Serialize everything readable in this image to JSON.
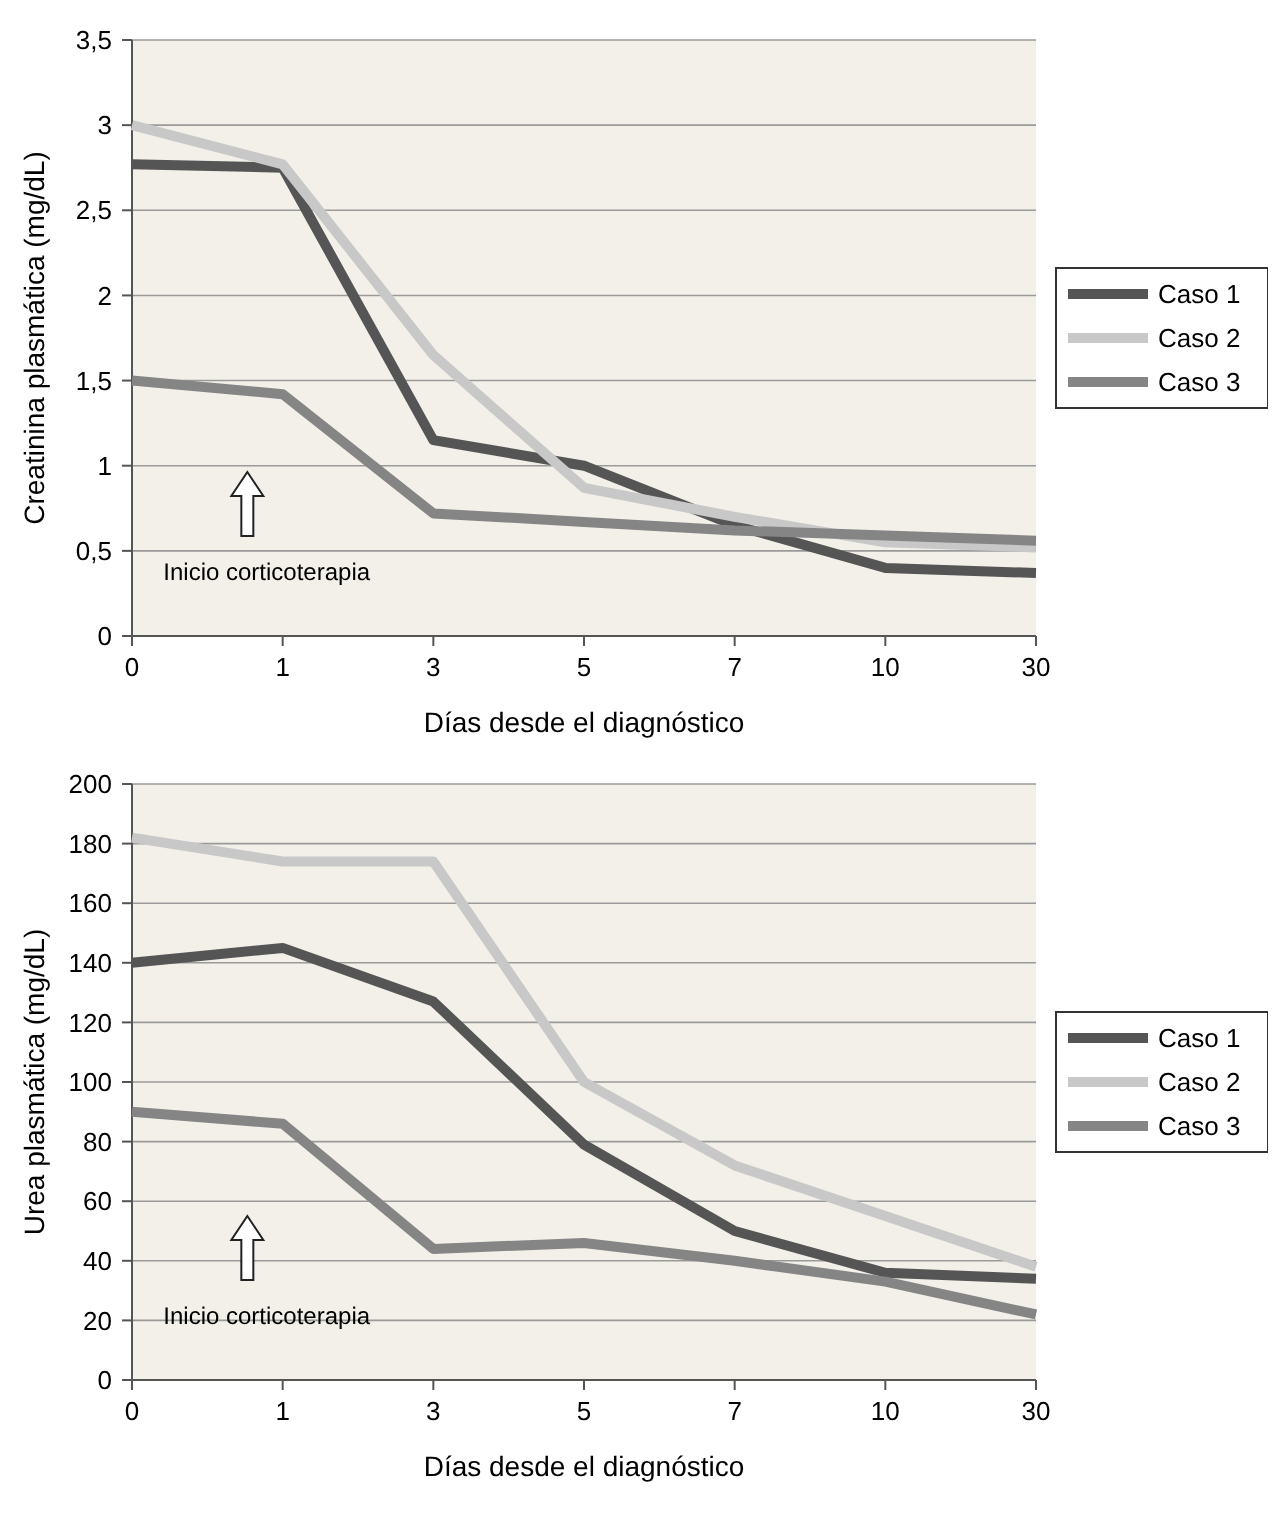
{
  "chart_data": [
    {
      "type": "line",
      "categories": [
        "0",
        "1",
        "3",
        "5",
        "7",
        "10",
        "30"
      ],
      "xlabel": "Días desde el diagnóstico",
      "ylabel": "Creatinina plasmática (mg/dL)",
      "ylim": [
        0,
        3.5
      ],
      "yticks": [
        0,
        {
          "value": 0.5,
          "label": "0,5"
        },
        1,
        {
          "value": 1.5,
          "label": "1,5"
        },
        2,
        {
          "value": 2.5,
          "label": "2,5"
        },
        3,
        {
          "value": 3.5,
          "label": "3,5"
        }
      ],
      "grid": "y",
      "legend": "right",
      "annotations": [
        "Inicio corticoterapia"
      ],
      "series": [
        {
          "name": "Caso 1",
          "color": "#555555",
          "values": [
            2.77,
            2.75,
            1.15,
            1.0,
            0.65,
            0.4,
            0.37
          ]
        },
        {
          "name": "Caso 2",
          "color": "#c8c8c8",
          "values": [
            3.0,
            2.77,
            1.65,
            0.87,
            0.7,
            0.55,
            0.52
          ]
        },
        {
          "name": "Caso 3",
          "color": "#858585",
          "values": [
            1.5,
            1.42,
            0.72,
            0.67,
            0.62,
            0.59,
            0.56
          ]
        }
      ]
    },
    {
      "type": "line",
      "categories": [
        "0",
        "1",
        "3",
        "5",
        "7",
        "10",
        "30"
      ],
      "xlabel": "Días desde el diagnóstico",
      "ylabel": "Urea plasmática (mg/dL)",
      "ylim": [
        0,
        200
      ],
      "yticks": [
        0,
        20,
        40,
        60,
        80,
        100,
        120,
        140,
        160,
        180,
        200
      ],
      "grid": "y",
      "legend": "right",
      "annotations": [
        "Inicio corticoterapia"
      ],
      "series": [
        {
          "name": "Caso 1",
          "color": "#555555",
          "values": [
            140,
            145,
            127,
            79,
            50,
            36,
            34
          ]
        },
        {
          "name": "Caso 2",
          "color": "#c8c8c8",
          "values": [
            182,
            174,
            174,
            100,
            72,
            55,
            38
          ]
        },
        {
          "name": "Caso 3",
          "color": "#858585",
          "values": [
            90,
            86,
            44,
            46,
            40,
            33,
            22
          ]
        }
      ]
    }
  ]
}
